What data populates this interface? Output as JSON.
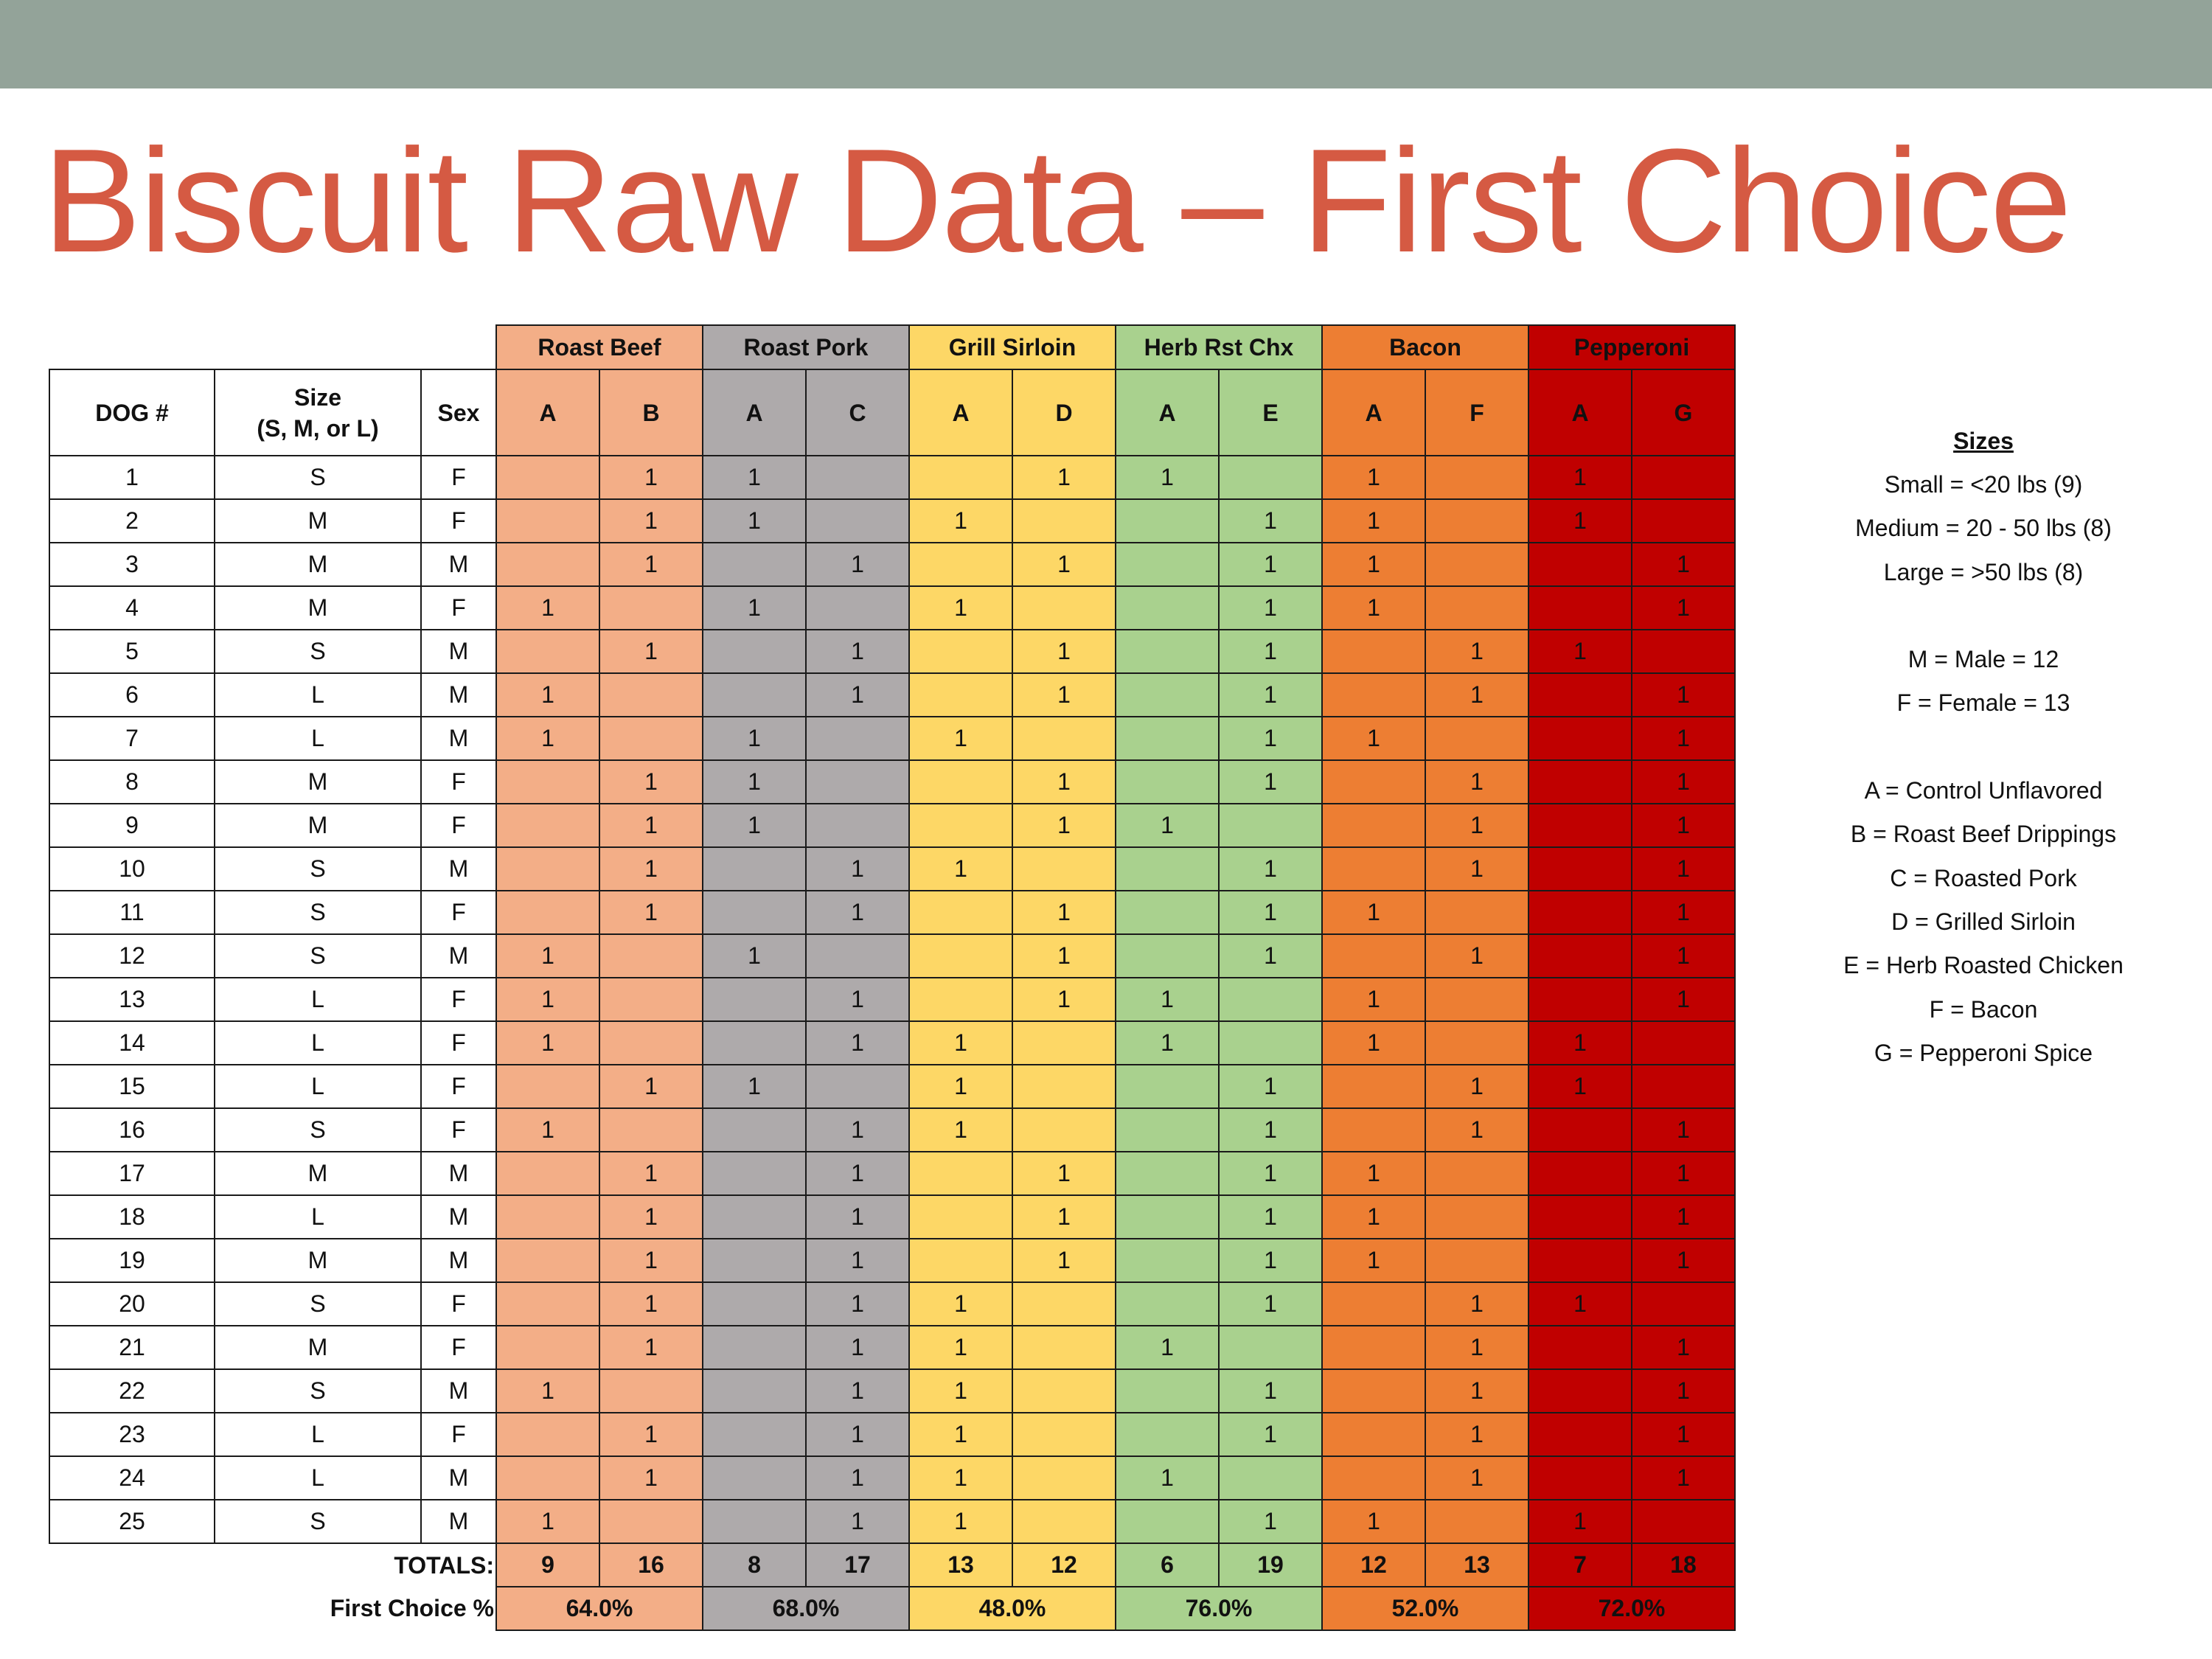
{
  "title": "Biscuit Raw Data – First Choice",
  "flavors": [
    {
      "name": "Roast Beef",
      "color": "#f3ae87"
    },
    {
      "name": "Roast Pork",
      "color": "#aeaaab"
    },
    {
      "name": "Grill Sirloin",
      "color": "#fdd766"
    },
    {
      "name": "Herb Rst Chx",
      "color": "#a9d18e"
    },
    {
      "name": "Bacon",
      "color": "#ed7e33"
    },
    {
      "name": "Pepperoni",
      "color": "#c00000"
    }
  ],
  "headers": {
    "dog": "DOG #",
    "size_line1": "Size",
    "size_line2": "(S, M, or L)",
    "sex": "Sex",
    "pairs": [
      [
        "A",
        "B"
      ],
      [
        "A",
        "C"
      ],
      [
        "A",
        "D"
      ],
      [
        "A",
        "E"
      ],
      [
        "A",
        "F"
      ],
      [
        "A",
        "G"
      ]
    ]
  },
  "rows": [
    {
      "dog": "1",
      "size": "S",
      "sex": "F",
      "v": [
        "",
        "1",
        "1",
        "",
        "",
        "1",
        "1",
        "",
        "1",
        "",
        "1",
        ""
      ]
    },
    {
      "dog": "2",
      "size": "M",
      "sex": "F",
      "v": [
        "",
        "1",
        "1",
        "",
        "1",
        "",
        "",
        "1",
        "1",
        "",
        "1",
        ""
      ]
    },
    {
      "dog": "3",
      "size": "M",
      "sex": "M",
      "v": [
        "",
        "1",
        "",
        "1",
        "",
        "1",
        "",
        "1",
        "1",
        "",
        "",
        "1"
      ]
    },
    {
      "dog": "4",
      "size": "M",
      "sex": "F",
      "v": [
        "1",
        "",
        "1",
        "",
        "1",
        "",
        "",
        "1",
        "1",
        "",
        "",
        "1"
      ]
    },
    {
      "dog": "5",
      "size": "S",
      "sex": "M",
      "v": [
        "",
        "1",
        "",
        "1",
        "",
        "1",
        "",
        "1",
        "",
        "1",
        "1",
        ""
      ]
    },
    {
      "dog": "6",
      "size": "L",
      "sex": "M",
      "v": [
        "1",
        "",
        "",
        "1",
        "",
        "1",
        "",
        "1",
        "",
        "1",
        "",
        "1"
      ]
    },
    {
      "dog": "7",
      "size": "L",
      "sex": "M",
      "v": [
        "1",
        "",
        "1",
        "",
        "1",
        "",
        "",
        "1",
        "1",
        "",
        "",
        "1"
      ]
    },
    {
      "dog": "8",
      "size": "M",
      "sex": "F",
      "v": [
        "",
        "1",
        "1",
        "",
        "",
        "1",
        "",
        "1",
        "",
        "1",
        "",
        "1"
      ]
    },
    {
      "dog": "9",
      "size": "M",
      "sex": "F",
      "v": [
        "",
        "1",
        "1",
        "",
        "",
        "1",
        "1",
        "",
        "",
        "1",
        "",
        "1"
      ]
    },
    {
      "dog": "10",
      "size": "S",
      "sex": "M",
      "v": [
        "",
        "1",
        "",
        "1",
        "1",
        "",
        "",
        "1",
        "",
        "1",
        "",
        "1"
      ]
    },
    {
      "dog": "11",
      "size": "S",
      "sex": "F",
      "v": [
        "",
        "1",
        "",
        "1",
        "",
        "1",
        "",
        "1",
        "1",
        "",
        "",
        "1"
      ]
    },
    {
      "dog": "12",
      "size": "S",
      "sex": "M",
      "v": [
        "1",
        "",
        "1",
        "",
        "",
        "1",
        "",
        "1",
        "",
        "1",
        "",
        "1"
      ]
    },
    {
      "dog": "13",
      "size": "L",
      "sex": "F",
      "v": [
        "1",
        "",
        "",
        "1",
        "",
        "1",
        "1",
        "",
        "1",
        "",
        "",
        "1"
      ]
    },
    {
      "dog": "14",
      "size": "L",
      "sex": "F",
      "v": [
        "1",
        "",
        "",
        "1",
        "1",
        "",
        "1",
        "",
        "1",
        "",
        "1",
        ""
      ]
    },
    {
      "dog": "15",
      "size": "L",
      "sex": "F",
      "v": [
        "",
        "1",
        "1",
        "",
        "1",
        "",
        "",
        "1",
        "",
        "1",
        "1",
        ""
      ]
    },
    {
      "dog": "16",
      "size": "S",
      "sex": "F",
      "v": [
        "1",
        "",
        "",
        "1",
        "1",
        "",
        "",
        "1",
        "",
        "1",
        "",
        "1"
      ]
    },
    {
      "dog": "17",
      "size": "M",
      "sex": "M",
      "v": [
        "",
        "1",
        "",
        "1",
        "",
        "1",
        "",
        "1",
        "1",
        "",
        "",
        "1"
      ]
    },
    {
      "dog": "18",
      "size": "L",
      "sex": "M",
      "v": [
        "",
        "1",
        "",
        "1",
        "",
        "1",
        "",
        "1",
        "1",
        "",
        "",
        "1"
      ]
    },
    {
      "dog": "19",
      "size": "M",
      "sex": "M",
      "v": [
        "",
        "1",
        "",
        "1",
        "",
        "1",
        "",
        "1",
        "1",
        "",
        "",
        "1"
      ]
    },
    {
      "dog": "20",
      "size": "S",
      "sex": "F",
      "v": [
        "",
        "1",
        "",
        "1",
        "1",
        "",
        "",
        "1",
        "",
        "1",
        "1",
        ""
      ]
    },
    {
      "dog": "21",
      "size": "M",
      "sex": "F",
      "v": [
        "",
        "1",
        "",
        "1",
        "1",
        "",
        "1",
        "",
        "",
        "1",
        "",
        "1"
      ]
    },
    {
      "dog": "22",
      "size": "S",
      "sex": "M",
      "v": [
        "1",
        "",
        "",
        "1",
        "1",
        "",
        "",
        "1",
        "",
        "1",
        "",
        "1"
      ]
    },
    {
      "dog": "23",
      "size": "L",
      "sex": "F",
      "v": [
        "",
        "1",
        "",
        "1",
        "1",
        "",
        "",
        "1",
        "",
        "1",
        "",
        "1"
      ]
    },
    {
      "dog": "24",
      "size": "L",
      "sex": "M",
      "v": [
        "",
        "1",
        "",
        "1",
        "1",
        "",
        "1",
        "",
        "",
        "1",
        "",
        "1"
      ]
    },
    {
      "dog": "25",
      "size": "S",
      "sex": "M",
      "v": [
        "1",
        "",
        "",
        "1",
        "1",
        "",
        "",
        "1",
        "1",
        "",
        "1",
        ""
      ]
    }
  ],
  "totals_label": "TOTALS:",
  "totals": [
    "9",
    "16",
    "8",
    "17",
    "13",
    "12",
    "6",
    "19",
    "12",
    "13",
    "7",
    "18"
  ],
  "pct_label": "First Choice %",
  "pcts": [
    "64.0%",
    "68.0%",
    "48.0%",
    "76.0%",
    "52.0%",
    "72.0%"
  ],
  "legend": {
    "title": "Sizes",
    "items": [
      "Small = <20 lbs (9)",
      "Medium = 20 - 50 lbs (8)",
      "Large = >50 lbs (8)",
      "",
      "M = Male = 12",
      "F = Female = 13",
      "",
      "A = Control Unflavored",
      "B = Roast Beef Drippings",
      "C = Roasted Pork",
      "D = Grilled Sirloin",
      "E = Herb Roasted Chicken",
      "F = Bacon",
      "G = Pepperoni Spice"
    ]
  }
}
